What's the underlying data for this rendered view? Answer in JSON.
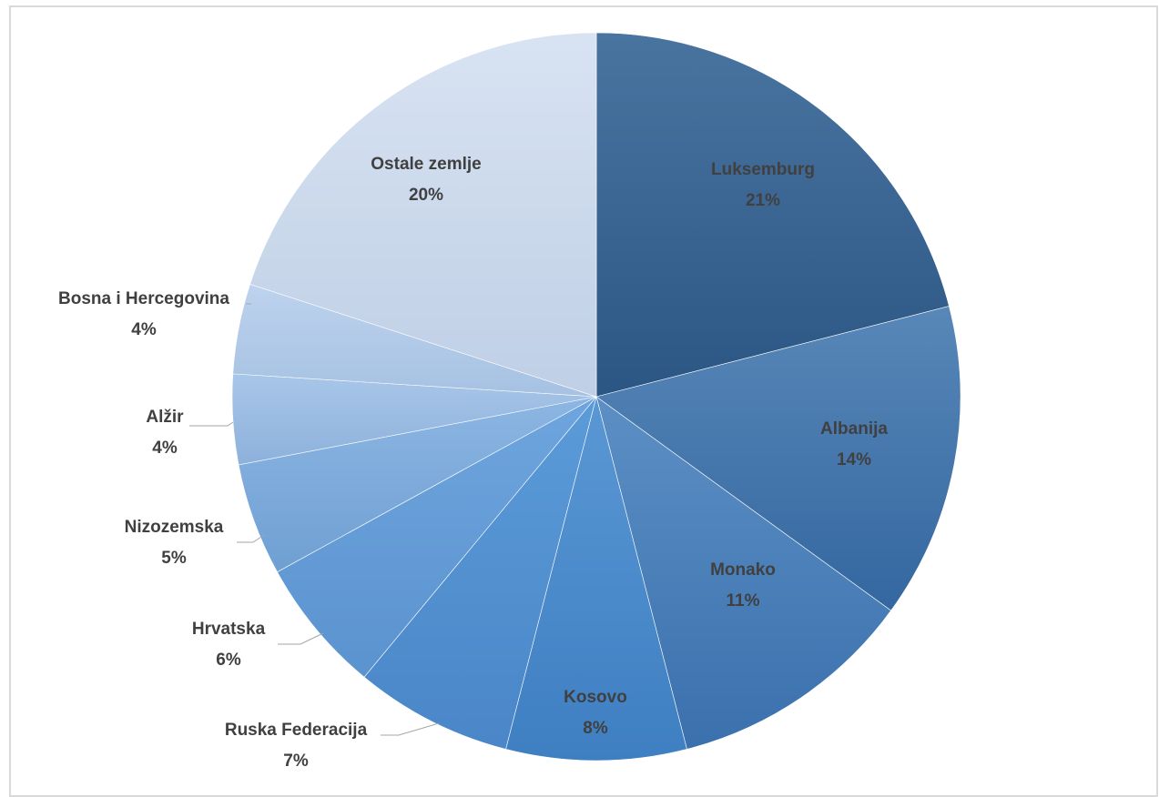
{
  "chart_data": {
    "type": "pie",
    "title": "",
    "start_angle_deg": 0,
    "direction": "clockwise",
    "slices": [
      {
        "label": "Luksemburg",
        "value": 21,
        "pct_text": "21%",
        "color_top": "#4a74a0",
        "color_bottom": "#2b5684",
        "label_inside": true
      },
      {
        "label": "Albanija",
        "value": 14,
        "pct_text": "14%",
        "color_top": "#5887b8",
        "color_bottom": "#3467a0",
        "label_inside": true
      },
      {
        "label": "Monako",
        "value": 11,
        "pct_text": "11%",
        "color_top": "#5c8fc4",
        "color_bottom": "#3a70ad",
        "label_inside": true
      },
      {
        "label": "Kosovo",
        "value": 8,
        "pct_text": "8%",
        "color_top": "#5a97d4",
        "color_bottom": "#3e7fc2",
        "label_inside": true
      },
      {
        "label": "Ruska Federacija",
        "value": 7,
        "pct_text": "7%",
        "color_top": "#5b9bd8",
        "color_bottom": "#4a86c8",
        "label_inside": false
      },
      {
        "label": "Hrvatska",
        "value": 6,
        "pct_text": "6%",
        "color_top": "#6ea5de",
        "color_bottom": "#5b93cf",
        "label_inside": false
      },
      {
        "label": "Nizozemska",
        "value": 5,
        "pct_text": "5%",
        "color_top": "#8cb6e3",
        "color_bottom": "#6f9fd2",
        "label_inside": false
      },
      {
        "label": "Alžir",
        "value": 4,
        "pct_text": "4%",
        "color_top": "#a8c6e8",
        "color_bottom": "#8db1dc",
        "label_inside": false
      },
      {
        "label": "Bosna i Hercegovina",
        "value": 4,
        "pct_text": "4%",
        "color_top": "#bdd3ee",
        "color_bottom": "#a6c1e2",
        "label_inside": false
      },
      {
        "label": "Ostale zemlje",
        "value": 20,
        "pct_text": "20%",
        "color_top": "#d8e3f2",
        "color_bottom": "#bfcfe6",
        "label_inside": true
      }
    ]
  }
}
